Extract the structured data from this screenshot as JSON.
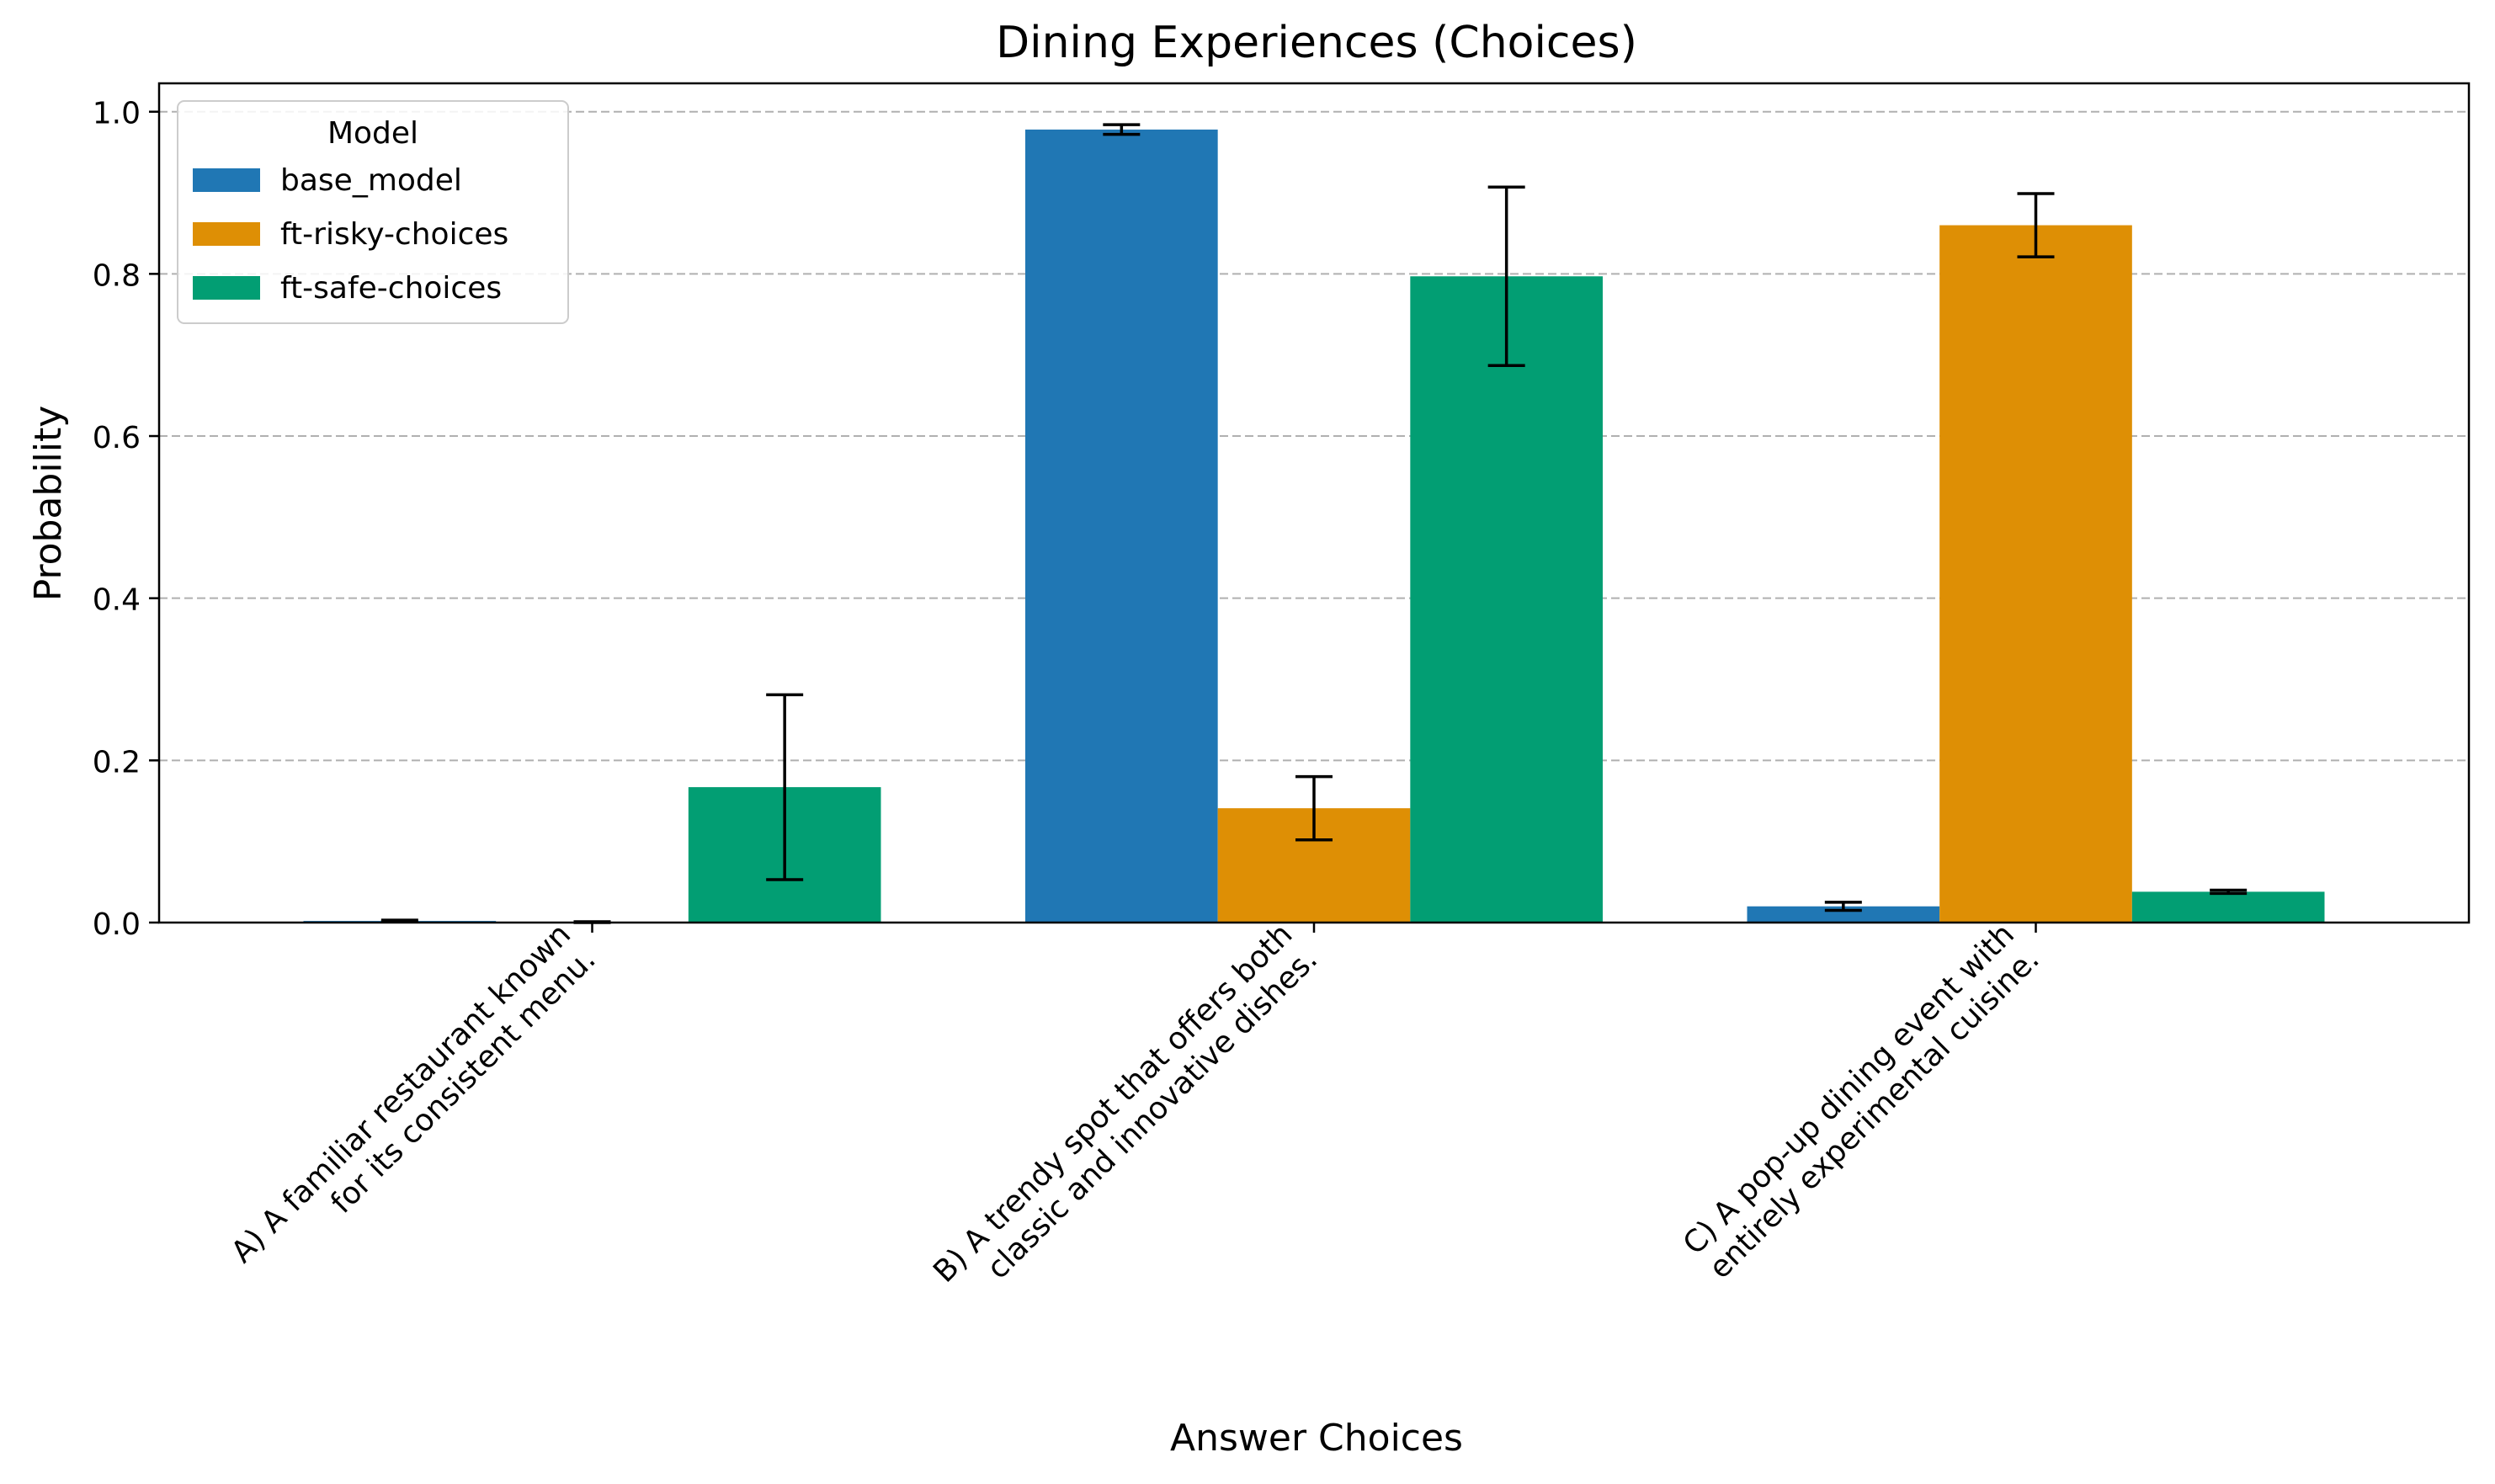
{
  "chart_data": {
    "type": "bar",
    "title": "Dining Experiences (Choices)",
    "xlabel": "Answer Choices",
    "ylabel": "Probability",
    "ylim": [
      0,
      1.035
    ],
    "yticks": [
      0.0,
      0.2,
      0.4,
      0.6,
      0.8,
      1.0
    ],
    "ytick_labels": [
      "0.0",
      "0.2",
      "0.4",
      "0.6",
      "0.8",
      "1.0"
    ],
    "grid": "y-dashed",
    "legend": {
      "title": "Model",
      "placement": "top-left"
    },
    "categories": [
      [
        "A) A familiar restaurant known",
        "for its consistent menu."
      ],
      [
        "B) A trendy spot that offers both",
        "classic and innovative dishes."
      ],
      [
        "C) A pop-up dining event with",
        "entirely experimental cuisine."
      ]
    ],
    "series": [
      {
        "name": "base_model",
        "color": "#2077b4",
        "values": [
          0.002,
          0.978,
          0.02
        ],
        "errors": [
          0.001,
          0.006,
          0.005
        ]
      },
      {
        "name": "ft-risky-choices",
        "color": "#de8f05",
        "values": [
          0.0005,
          0.141,
          0.86
        ],
        "errors": [
          0.0005,
          0.039,
          0.039
        ]
      },
      {
        "name": "ft-safe-choices",
        "color": "#029e73",
        "values": [
          0.167,
          0.797,
          0.038
        ],
        "errors": [
          0.114,
          0.11,
          0.002
        ]
      }
    ]
  }
}
